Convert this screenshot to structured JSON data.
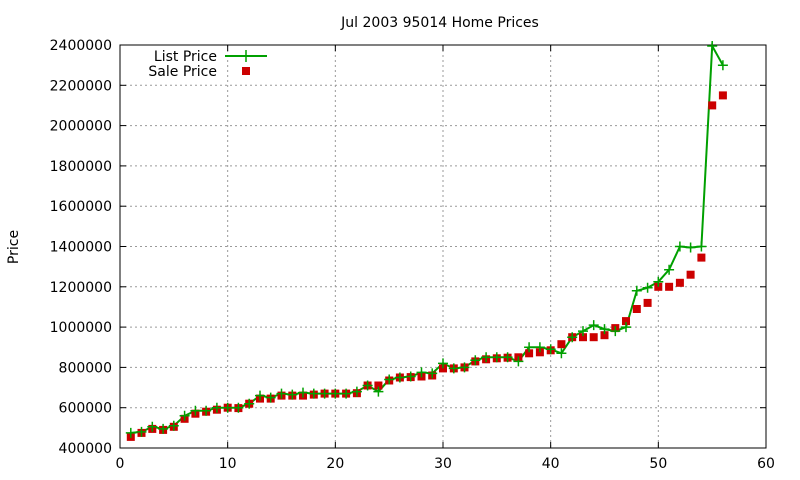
{
  "chart_data": {
    "type": "line",
    "title": "Jul 2003 95014 Home Prices",
    "xlabel": "",
    "ylabel": "Price",
    "xlim": [
      0,
      60
    ],
    "ylim": [
      400000,
      2400000
    ],
    "xticks": [
      "0",
      "10",
      "20",
      "30",
      "40",
      "50",
      "60"
    ],
    "yticks": [
      "400000",
      "600000",
      "800000",
      "1000000",
      "1200000",
      "1400000",
      "1600000",
      "1800000",
      "2000000",
      "2200000",
      "2400000"
    ],
    "grid": true,
    "legend_position": "top-left",
    "x": [
      1,
      2,
      3,
      4,
      5,
      6,
      7,
      8,
      9,
      10,
      11,
      12,
      13,
      14,
      15,
      16,
      17,
      18,
      19,
      20,
      21,
      22,
      23,
      24,
      25,
      26,
      27,
      28,
      29,
      30,
      31,
      32,
      33,
      34,
      35,
      36,
      37,
      38,
      39,
      40,
      41,
      42,
      43,
      44,
      45,
      46,
      47,
      48,
      49,
      50,
      51,
      52,
      53,
      54,
      55,
      56
    ],
    "series": [
      {
        "name": "List Price",
        "style": "line+cross",
        "color": "#00a000",
        "values": [
          475000,
          480000,
          505000,
          495000,
          510000,
          560000,
          585000,
          585000,
          600000,
          600000,
          600000,
          620000,
          660000,
          650000,
          670000,
          665000,
          675000,
          670000,
          670000,
          670000,
          670000,
          680000,
          710000,
          680000,
          740000,
          750000,
          755000,
          775000,
          770000,
          820000,
          795000,
          800000,
          835000,
          850000,
          850000,
          850000,
          830000,
          900000,
          900000,
          890000,
          870000,
          950000,
          980000,
          1010000,
          990000,
          980000,
          1000000,
          1180000,
          1195000,
          1225000,
          1285000,
          1400000,
          1395000,
          1400000,
          2395000,
          2300000
        ]
      },
      {
        "name": "Sale Price",
        "style": "square",
        "color": "#cc0000",
        "values": [
          455000,
          475000,
          495000,
          490000,
          505000,
          545000,
          570000,
          580000,
          590000,
          600000,
          598000,
          620000,
          645000,
          645000,
          660000,
          660000,
          660000,
          665000,
          670000,
          670000,
          670000,
          672000,
          710000,
          710000,
          735000,
          750000,
          752000,
          755000,
          760000,
          795000,
          795000,
          800000,
          830000,
          840000,
          845000,
          848000,
          850000,
          870000,
          875000,
          885000,
          915000,
          950000,
          950000,
          950000,
          960000,
          995000,
          1030000,
          1090000,
          1120000,
          1200000,
          1200000,
          1220000,
          1260000,
          1345000,
          2100000,
          2150000
        ]
      }
    ]
  }
}
